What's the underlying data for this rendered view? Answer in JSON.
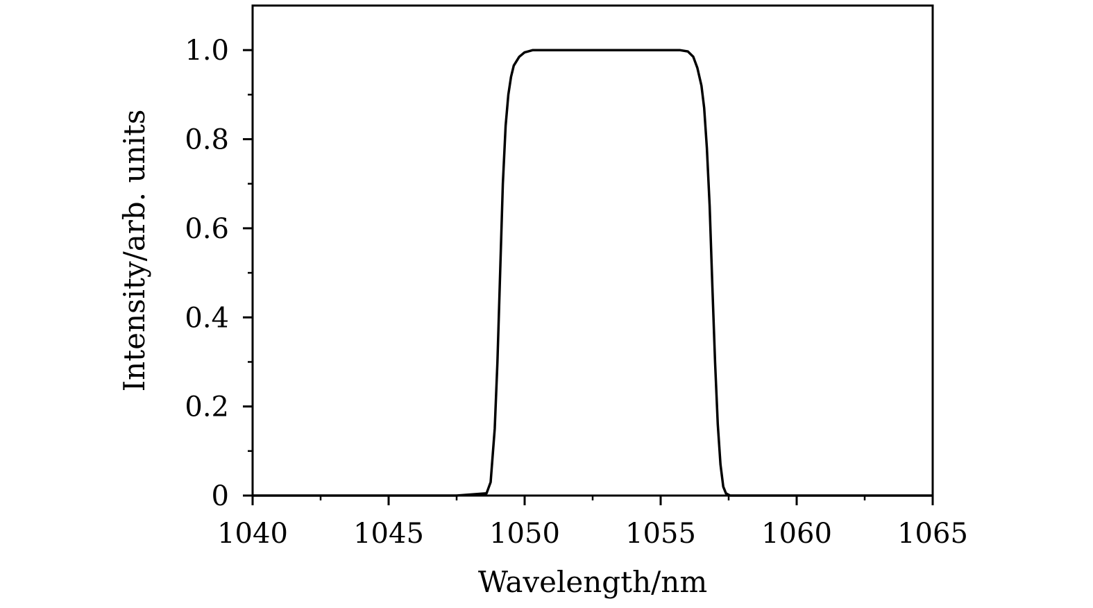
{
  "chart_data": {
    "type": "line",
    "title": "",
    "xlabel": "Wavelength/nm",
    "ylabel": "Intensity/arb. units",
    "xlim": [
      1040,
      1065
    ],
    "ylim": [
      0,
      1.1
    ],
    "x_ticks": [
      1040,
      1045,
      1050,
      1055,
      1060,
      1065
    ],
    "x_tick_labels": [
      "1040",
      "1045",
      "1050",
      "1055",
      "1060",
      "1065"
    ],
    "y_ticks": [
      0,
      0.2,
      0.4,
      0.6,
      0.8,
      1.0
    ],
    "y_tick_labels": [
      "0",
      "0.2",
      "0.4",
      "0.6",
      "0.8",
      "1.0"
    ],
    "grid": false,
    "legend": "none",
    "line_color": "#000000",
    "series": [
      {
        "x": [
          1040,
          1047.5,
          1048.6,
          1048.75,
          1048.9,
          1049.0,
          1049.1,
          1049.2,
          1049.3,
          1049.4,
          1049.5,
          1049.6,
          1049.8,
          1050.0,
          1050.3,
          1051.0,
          1053.0,
          1055.0,
          1055.7,
          1056.0,
          1056.2,
          1056.35,
          1056.5,
          1056.6,
          1056.7,
          1056.8,
          1056.9,
          1057.0,
          1057.1,
          1057.2,
          1057.3,
          1057.4,
          1057.55,
          1058.6,
          1065
        ],
        "y": [
          0,
          0,
          0.005,
          0.03,
          0.15,
          0.3,
          0.5,
          0.7,
          0.83,
          0.9,
          0.94,
          0.965,
          0.985,
          0.995,
          1.0,
          1.0,
          1.0,
          1.0,
          1.0,
          0.997,
          0.985,
          0.96,
          0.92,
          0.87,
          0.78,
          0.65,
          0.47,
          0.3,
          0.16,
          0.07,
          0.02,
          0.005,
          0,
          0,
          0
        ]
      }
    ]
  }
}
